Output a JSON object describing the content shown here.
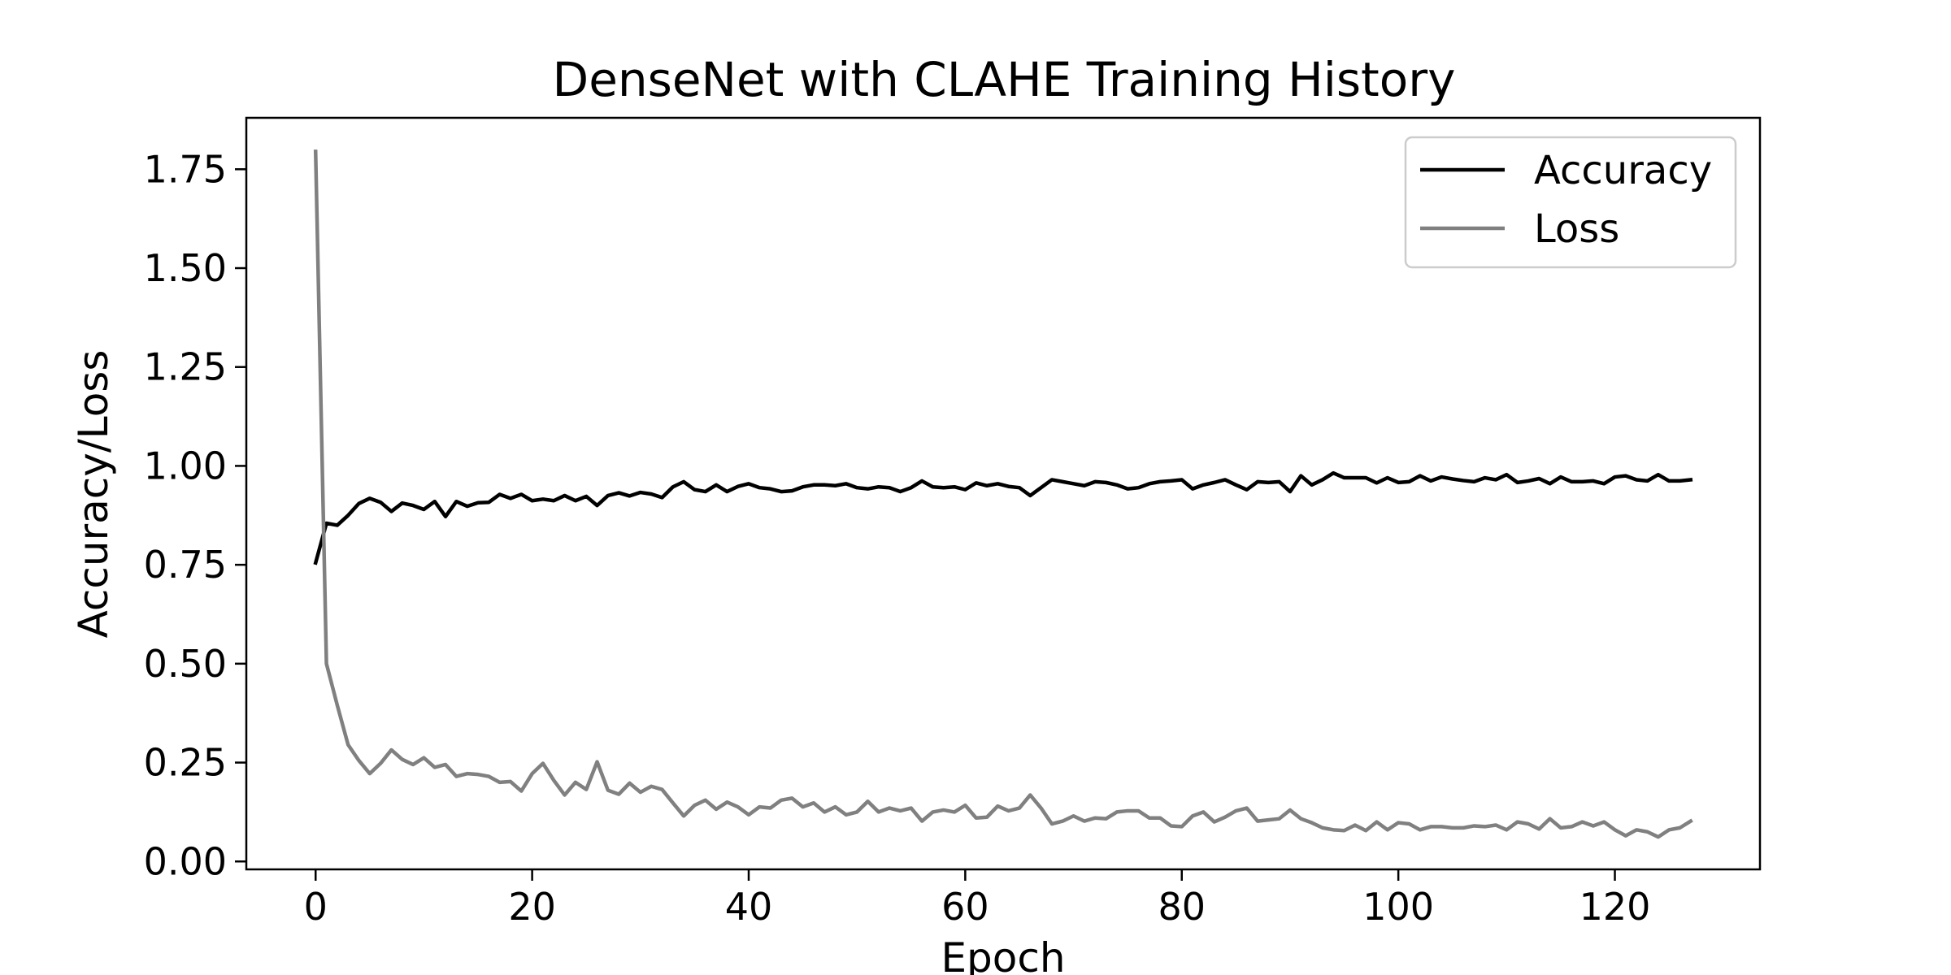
{
  "chart_data": {
    "type": "line",
    "title": "DenseNet with CLAHE Training History",
    "xlabel": "Epoch",
    "ylabel": "Accuracy/Loss",
    "xlim": [
      -6.4,
      133.4
    ],
    "ylim": [
      -0.02,
      1.88
    ],
    "x_ticks": [
      0,
      20,
      40,
      60,
      80,
      100,
      120
    ],
    "y_ticks": [
      0.0,
      0.25,
      0.5,
      0.75,
      1.0,
      1.25,
      1.5,
      1.75
    ],
    "x_tick_labels": [
      "0",
      "20",
      "40",
      "60",
      "80",
      "100",
      "120"
    ],
    "y_tick_labels": [
      "0.00",
      "0.25",
      "0.50",
      "0.75",
      "1.00",
      "1.25",
      "1.50",
      "1.75"
    ],
    "grid": false,
    "legend_position": "top-right",
    "x": [
      0,
      1,
      2,
      3,
      4,
      5,
      6,
      7,
      8,
      9,
      10,
      11,
      12,
      13,
      14,
      15,
      16,
      17,
      18,
      19,
      20,
      21,
      22,
      23,
      24,
      25,
      26,
      27,
      28,
      29,
      30,
      31,
      32,
      33,
      34,
      35,
      36,
      37,
      38,
      39,
      40,
      41,
      42,
      43,
      44,
      45,
      46,
      47,
      48,
      49,
      50,
      51,
      52,
      53,
      54,
      55,
      56,
      57,
      58,
      59,
      60,
      61,
      62,
      63,
      64,
      65,
      66,
      67,
      68,
      69,
      70,
      71,
      72,
      73,
      74,
      75,
      76,
      77,
      78,
      79,
      80,
      81,
      82,
      83,
      84,
      85,
      86,
      87,
      88,
      89,
      90,
      91,
      92,
      93,
      94,
      95,
      96,
      97,
      98,
      99,
      100,
      101,
      102,
      103,
      104,
      105,
      106,
      107,
      108,
      109,
      110,
      111,
      112,
      113,
      114,
      115,
      116,
      117,
      118,
      119,
      120,
      121,
      122,
      123,
      124,
      125,
      126,
      127
    ],
    "series": [
      {
        "name": "Accuracy",
        "color": "#000000",
        "values": [
          0.755,
          0.855,
          0.85,
          0.875,
          0.905,
          0.918,
          0.908,
          0.885,
          0.906,
          0.9,
          0.89,
          0.91,
          0.872,
          0.91,
          0.898,
          0.907,
          0.908,
          0.928,
          0.918,
          0.928,
          0.912,
          0.916,
          0.912,
          0.925,
          0.912,
          0.923,
          0.9,
          0.925,
          0.932,
          0.924,
          0.933,
          0.929,
          0.92,
          0.947,
          0.96,
          0.94,
          0.935,
          0.952,
          0.935,
          0.948,
          0.955,
          0.945,
          0.942,
          0.935,
          0.937,
          0.947,
          0.952,
          0.952,
          0.95,
          0.955,
          0.945,
          0.942,
          0.947,
          0.945,
          0.935,
          0.945,
          0.962,
          0.947,
          0.945,
          0.947,
          0.94,
          0.957,
          0.95,
          0.955,
          0.948,
          0.945,
          0.925,
          0.945,
          0.965,
          0.96,
          0.955,
          0.95,
          0.96,
          0.958,
          0.952,
          0.942,
          0.945,
          0.955,
          0.96,
          0.962,
          0.965,
          0.942,
          0.952,
          0.958,
          0.965,
          0.952,
          0.94,
          0.96,
          0.958,
          0.96,
          0.935,
          0.975,
          0.952,
          0.965,
          0.982,
          0.97,
          0.97,
          0.97,
          0.957,
          0.97,
          0.958,
          0.96,
          0.975,
          0.962,
          0.972,
          0.967,
          0.963,
          0.96,
          0.97,
          0.965,
          0.978,
          0.958,
          0.962,
          0.968,
          0.955,
          0.972,
          0.96,
          0.96,
          0.962,
          0.955,
          0.972,
          0.975,
          0.965,
          0.962,
          0.978,
          0.962,
          0.962,
          0.965
        ]
      },
      {
        "name": "Loss",
        "color": "#808080",
        "values": [
          1.795,
          0.5,
          0.395,
          0.295,
          0.255,
          0.222,
          0.248,
          0.282,
          0.258,
          0.245,
          0.262,
          0.238,
          0.245,
          0.215,
          0.222,
          0.22,
          0.215,
          0.2,
          0.202,
          0.178,
          0.222,
          0.248,
          0.205,
          0.168,
          0.2,
          0.182,
          0.252,
          0.18,
          0.17,
          0.198,
          0.175,
          0.19,
          0.182,
          0.148,
          0.115,
          0.142,
          0.155,
          0.132,
          0.15,
          0.138,
          0.118,
          0.138,
          0.135,
          0.155,
          0.16,
          0.138,
          0.148,
          0.125,
          0.138,
          0.118,
          0.125,
          0.152,
          0.125,
          0.135,
          0.128,
          0.135,
          0.102,
          0.125,
          0.13,
          0.125,
          0.142,
          0.11,
          0.112,
          0.14,
          0.128,
          0.135,
          0.168,
          0.135,
          0.095,
          0.102,
          0.115,
          0.102,
          0.11,
          0.108,
          0.125,
          0.128,
          0.128,
          0.11,
          0.11,
          0.09,
          0.088,
          0.115,
          0.125,
          0.1,
          0.112,
          0.128,
          0.135,
          0.102,
          0.105,
          0.108,
          0.13,
          0.108,
          0.098,
          0.085,
          0.08,
          0.078,
          0.092,
          0.078,
          0.1,
          0.08,
          0.098,
          0.095,
          0.08,
          0.088,
          0.088,
          0.085,
          0.085,
          0.09,
          0.088,
          0.092,
          0.08,
          0.1,
          0.095,
          0.082,
          0.108,
          0.085,
          0.088,
          0.1,
          0.09,
          0.1,
          0.08,
          0.065,
          0.08,
          0.075,
          0.062,
          0.08,
          0.085,
          0.102
        ]
      }
    ]
  }
}
